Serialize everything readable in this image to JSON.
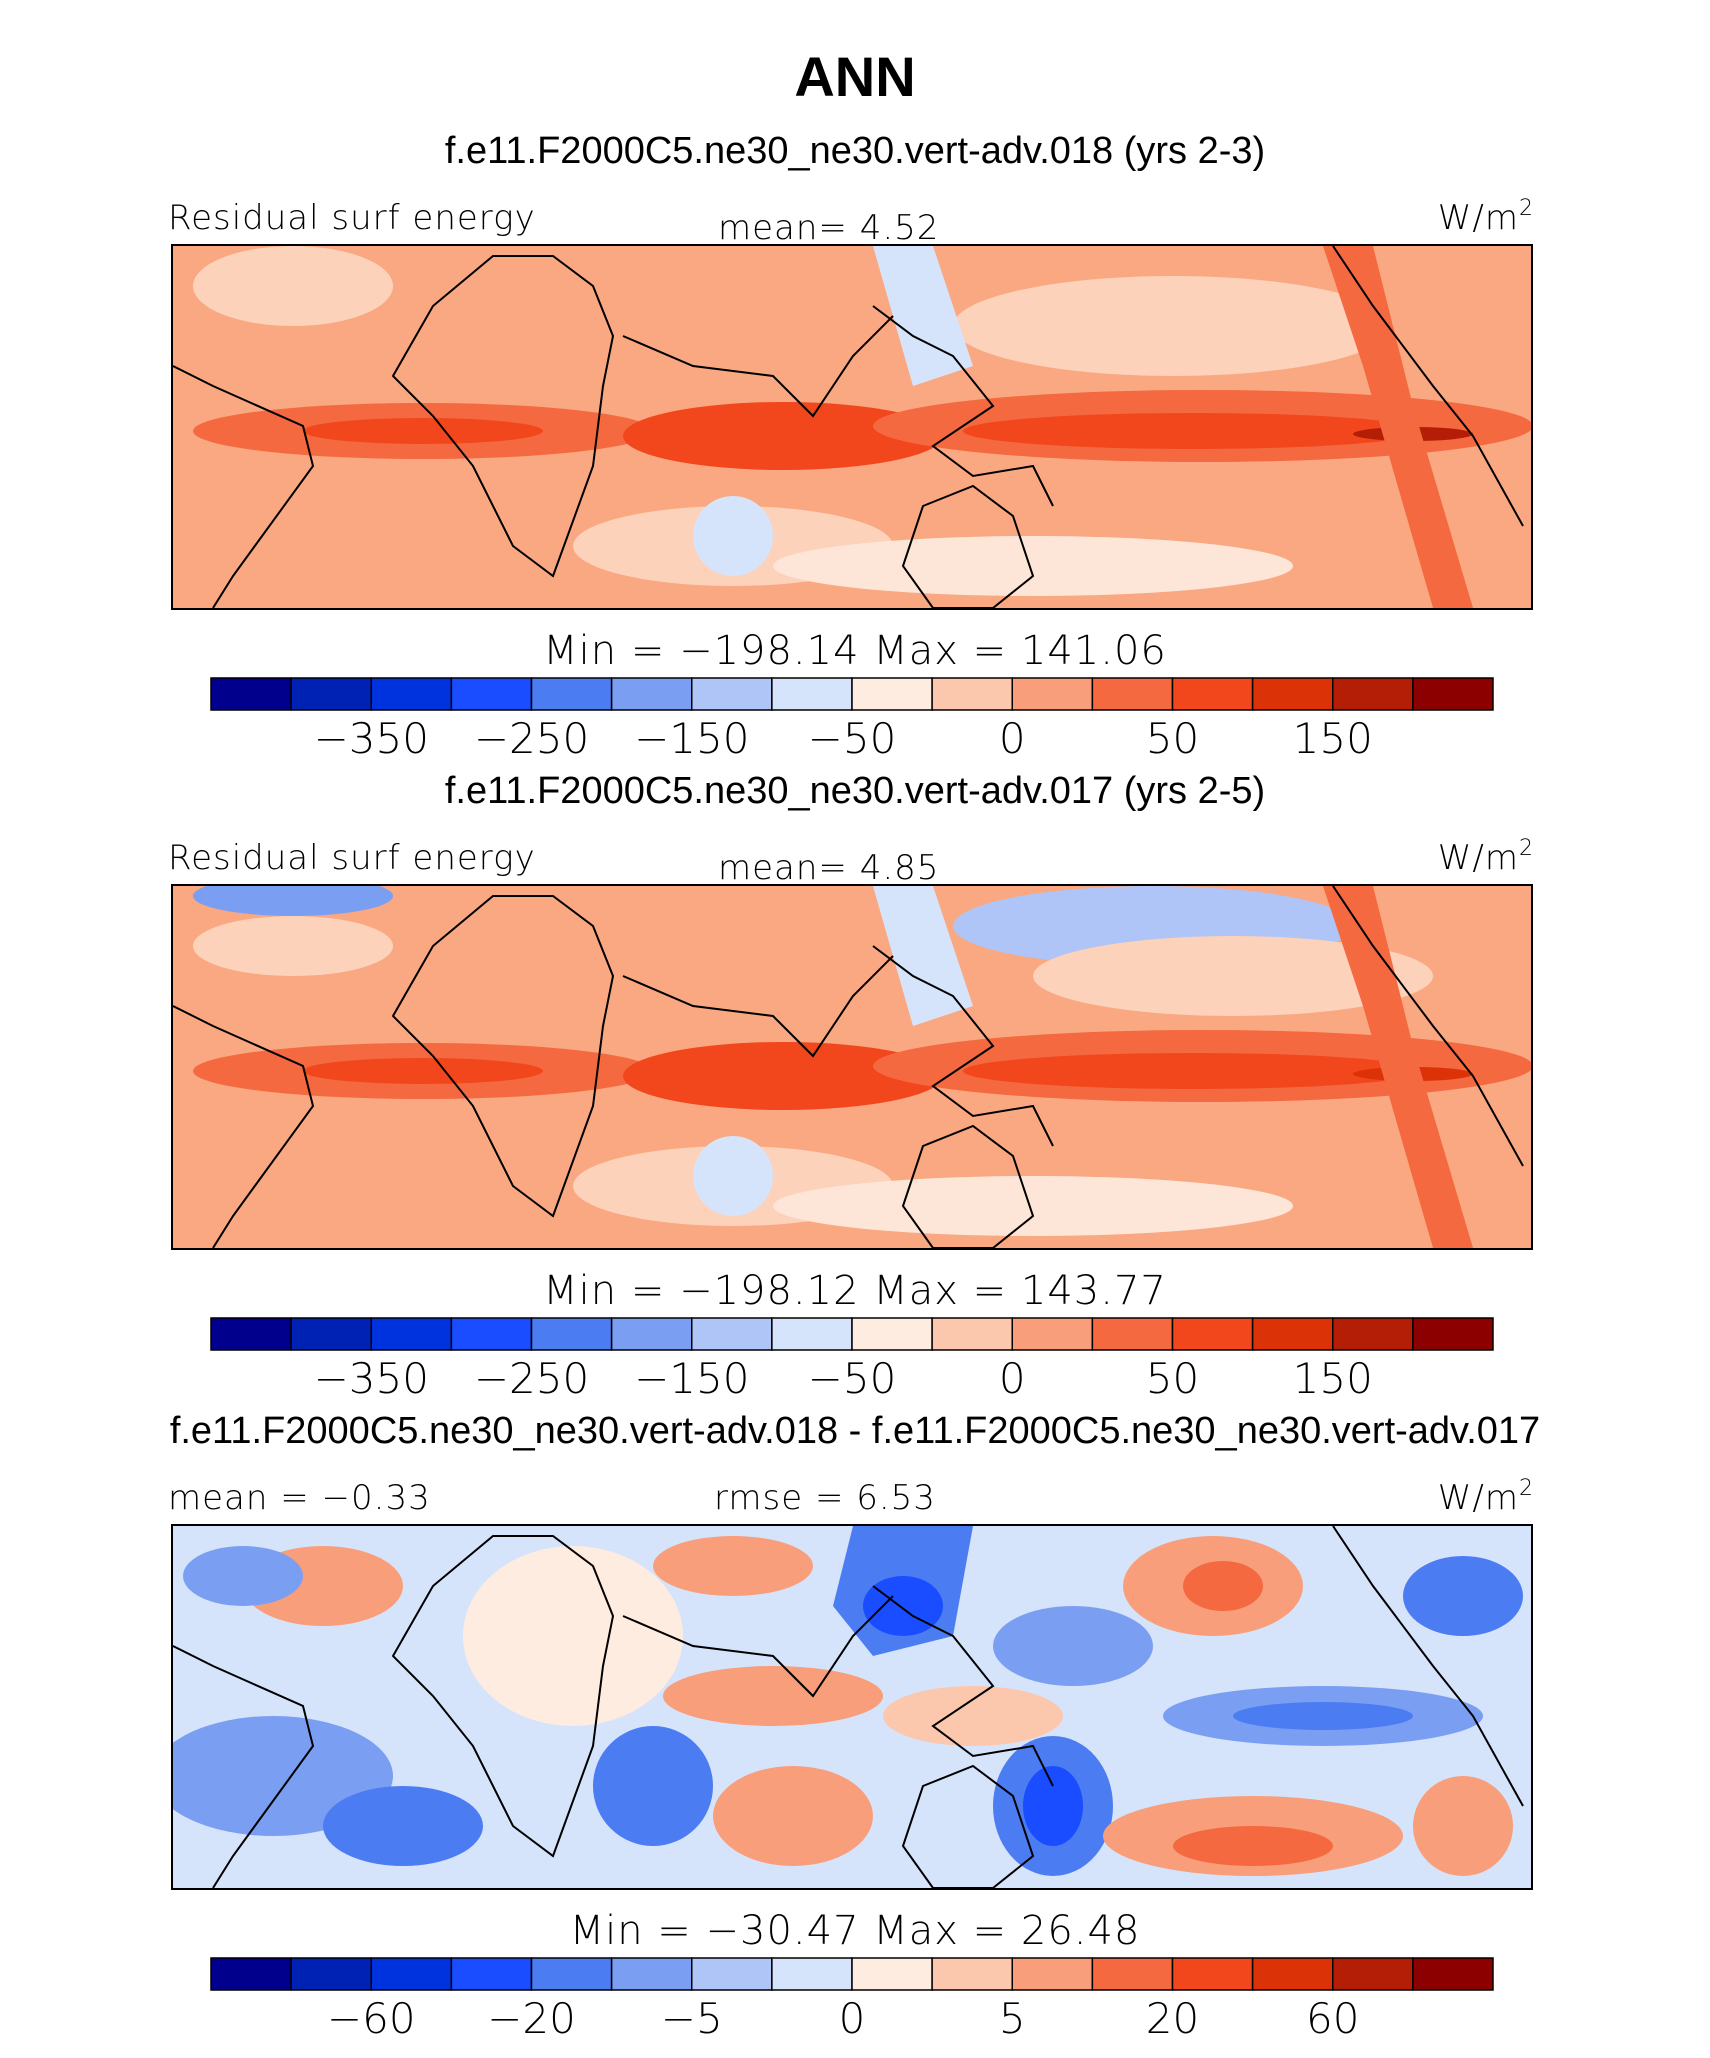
{
  "chart_data": {
    "type": "heatmap",
    "title": "ANN",
    "panels": [
      {
        "title": "f.e11.F2000C5.ne30_ne30.vert-adv.018 (yrs 2-3)",
        "variable": "Residual surf energy",
        "left_stat": "",
        "center_stat": "mean=   4.52",
        "units": "W/m",
        "units_exp": "2",
        "minmax": "Min = −198.14 Max = 141.06",
        "colorbar_ticks": [
          "−350",
          "−250",
          "−150",
          "−50",
          "0",
          "50",
          "150"
        ],
        "mean": 4.52,
        "min": -198.14,
        "max": 141.06
      },
      {
        "title": "f.e11.F2000C5.ne30_ne30.vert-adv.017 (yrs 2-5)",
        "variable": "Residual surf energy",
        "left_stat": "",
        "center_stat": "mean=   4.85",
        "units": "W/m",
        "units_exp": "2",
        "minmax": "Min = −198.12 Max = 143.77",
        "colorbar_ticks": [
          "−350",
          "−250",
          "−150",
          "−50",
          "0",
          "50",
          "150"
        ],
        "mean": 4.85,
        "min": -198.12,
        "max": 143.77
      },
      {
        "title": "f.e11.F2000C5.ne30_ne30.vert-adv.018 - f.e11.F2000C5.ne30_ne30.vert-adv.017",
        "variable": "",
        "left_stat": "mean =  −0.33",
        "center_stat": "rmse =    6.53",
        "units": "W/m",
        "units_exp": "2",
        "minmax": "Min = −30.47 Max =  26.48",
        "colorbar_ticks": [
          "−60",
          "−20",
          "−5",
          "0",
          "5",
          "20",
          "60"
        ],
        "mean": -0.33,
        "rmse": 6.53,
        "min": -30.47,
        "max": 26.48
      }
    ],
    "colorbar_colors": [
      "#00008c",
      "#0022b4",
      "#0033dd",
      "#1a4dff",
      "#4c7cf2",
      "#7a9ef2",
      "#afc4f7",
      "#d6e4fb",
      "#ffece0",
      "#fcc8ad",
      "#f89e7b",
      "#f4693f",
      "#f2461d",
      "#dc3208",
      "#b41e06",
      "#8c0000"
    ]
  }
}
